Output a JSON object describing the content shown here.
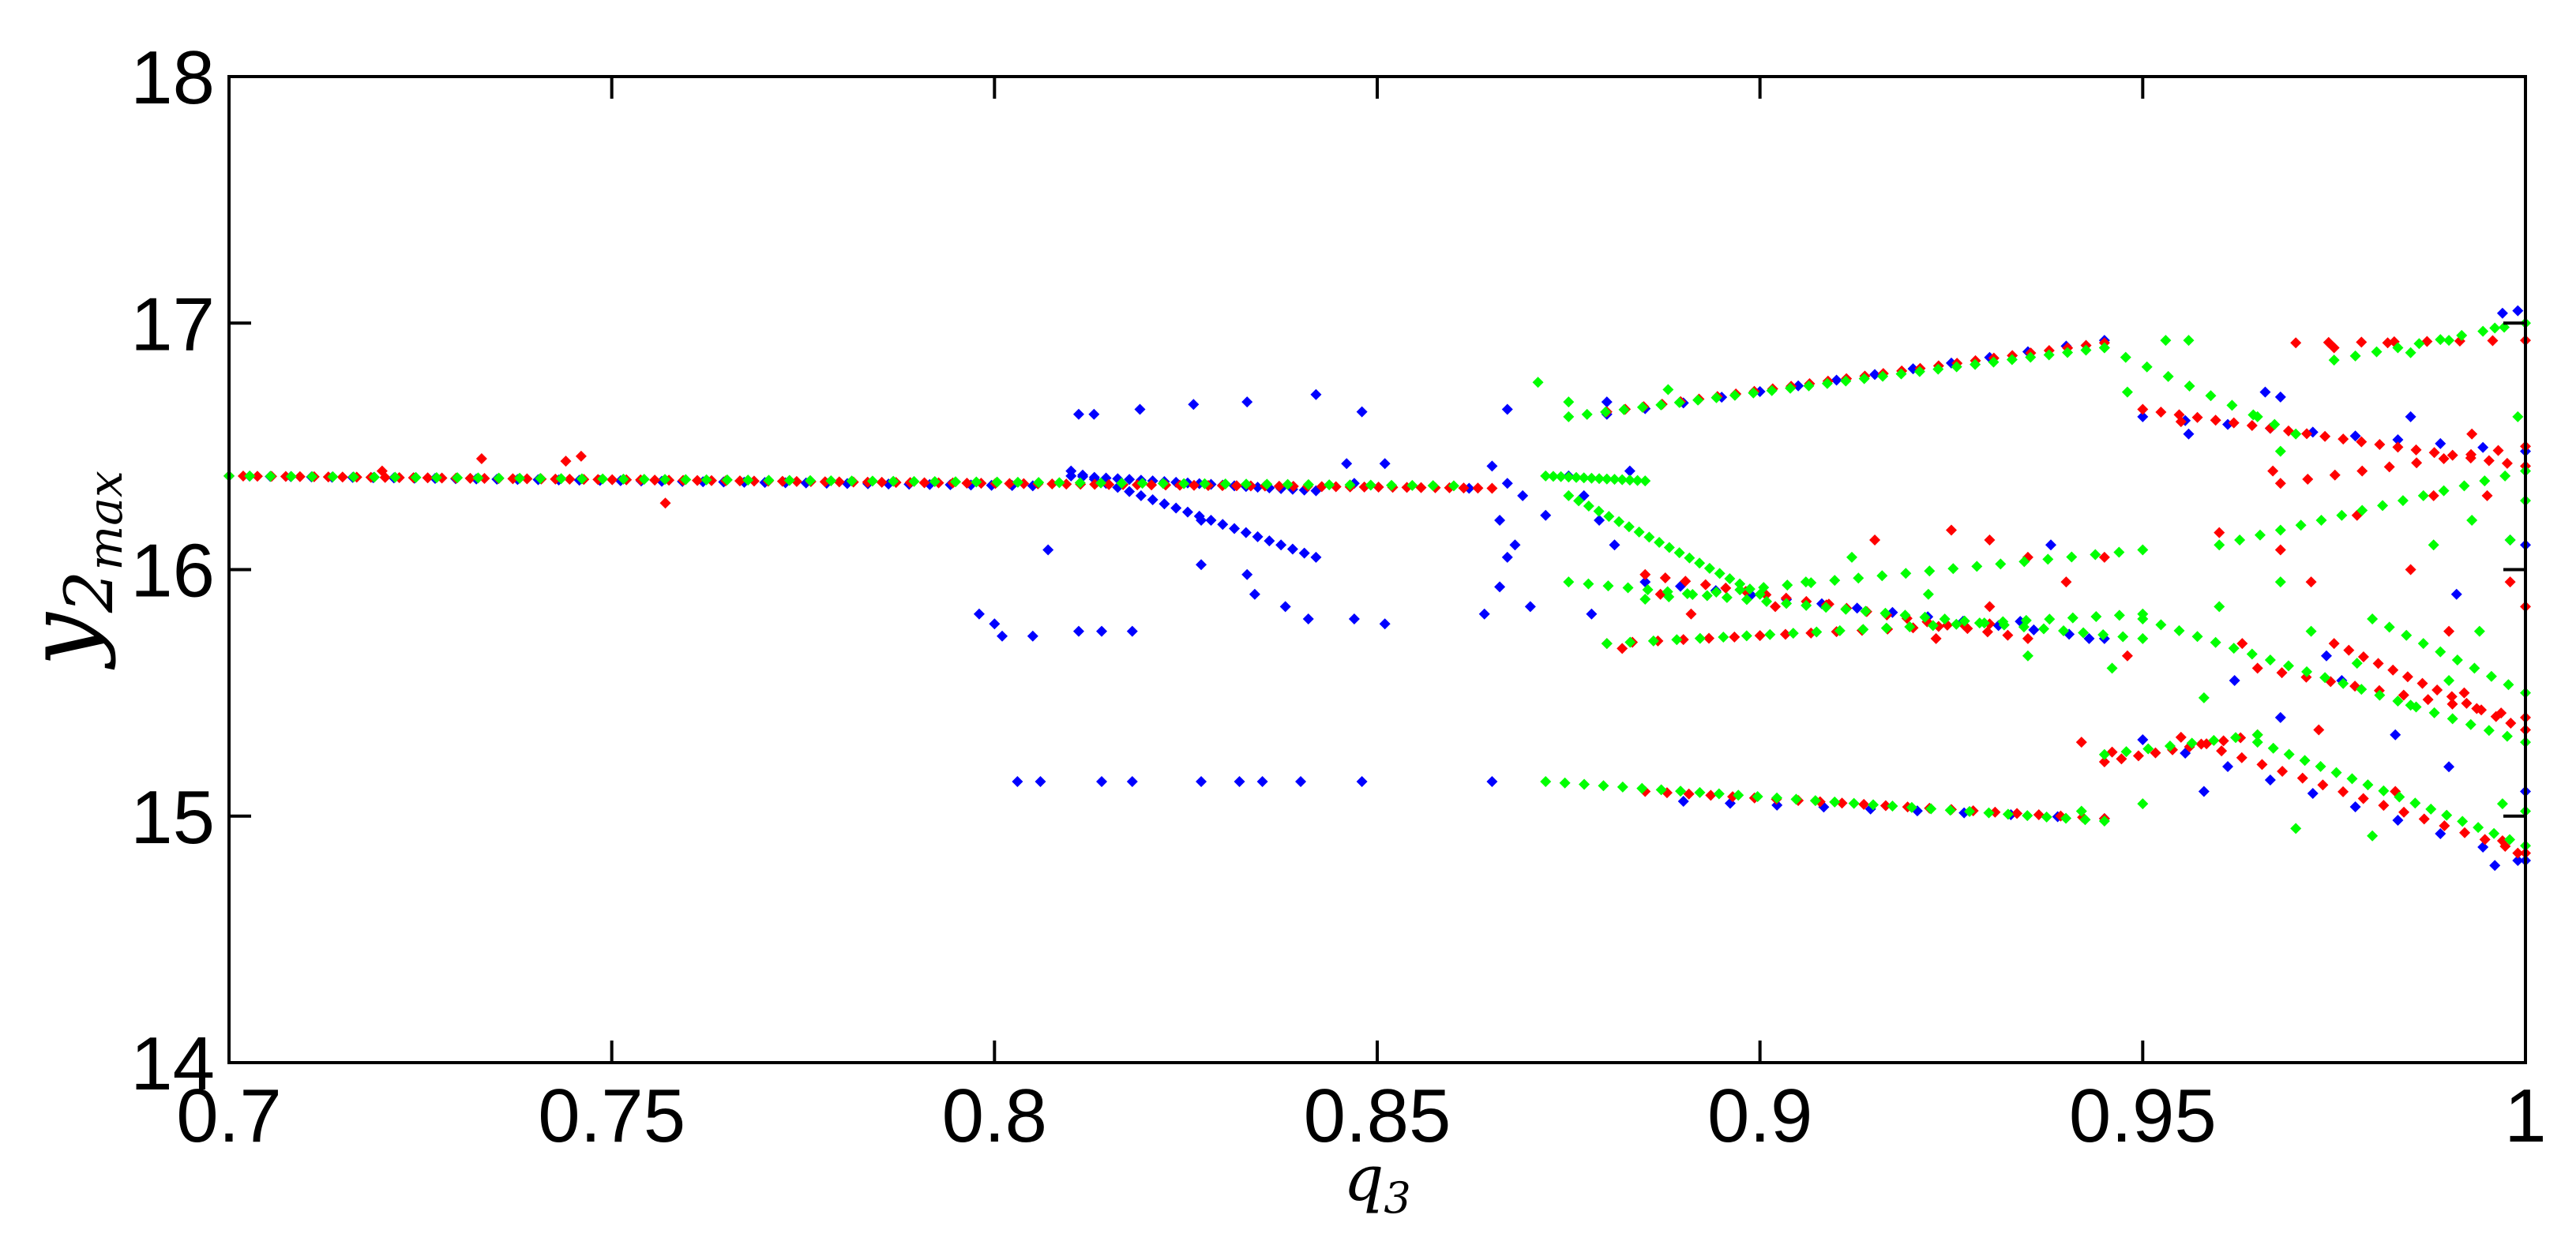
{
  "chart_data": {
    "type": "scatter",
    "title": "",
    "xlabel": "q",
    "xlabel_sub": "3",
    "ylabel": "y",
    "ylabel_sub": "2",
    "ylabel_subsub": "max",
    "xlim": [
      0.7,
      1.0
    ],
    "ylim": [
      14,
      18
    ],
    "x_ticks": [
      0.7,
      0.75,
      0.8,
      0.85,
      0.9,
      0.95,
      1.0
    ],
    "x_tick_labels": [
      "0.7",
      "0.75",
      "0.8",
      "0.85",
      "0.9",
      "0.95",
      "1"
    ],
    "y_ticks": [
      14,
      15,
      16,
      17,
      18
    ],
    "y_tick_labels": [
      "14",
      "15",
      "16",
      "17",
      "18"
    ],
    "grid": false,
    "legend": "none",
    "colors": {
      "blue": "#0000ff",
      "red": "#ff0000",
      "green": "#00ff00",
      "axes": "#000000"
    },
    "series": [
      {
        "color": "blue",
        "segments": [
          {
            "x0": 0.7,
            "x1": 0.805,
            "y0": 16.38,
            "y1": 16.34,
            "n": 40
          },
          {
            "x0": 0.81,
            "x1": 0.842,
            "y0": 16.4,
            "y1": 16.05,
            "n": 22
          },
          {
            "x0": 0.81,
            "x1": 0.842,
            "y0": 16.38,
            "y1": 16.32,
            "n": 22
          },
          {
            "x0": 0.88,
            "x1": 0.945,
            "y0": 16.63,
            "y1": 16.93,
            "n": 14
          },
          {
            "x0": 0.885,
            "x1": 0.945,
            "y0": 15.95,
            "y1": 15.72,
            "n": 14
          },
          {
            "x0": 0.89,
            "x1": 0.945,
            "y0": 15.06,
            "y1": 14.99,
            "n": 10
          },
          {
            "x0": 0.95,
            "x1": 1.0,
            "y0": 16.62,
            "y1": 16.48,
            "n": 10
          },
          {
            "x0": 0.95,
            "x1": 1.0,
            "y0": 15.31,
            "y1": 14.82,
            "n": 10
          }
        ],
        "points": [
          [
            0.811,
            16.63
          ],
          [
            0.813,
            16.63
          ],
          [
            0.819,
            16.65
          ],
          [
            0.826,
            16.67
          ],
          [
            0.833,
            16.68
          ],
          [
            0.842,
            16.71
          ],
          [
            0.848,
            16.64
          ],
          [
            0.798,
            15.82
          ],
          [
            0.8,
            15.78
          ],
          [
            0.801,
            15.73
          ],
          [
            0.805,
            15.73
          ],
          [
            0.811,
            15.75
          ],
          [
            0.814,
            15.75
          ],
          [
            0.818,
            15.75
          ],
          [
            0.827,
            16.02
          ],
          [
            0.833,
            15.98
          ],
          [
            0.834,
            15.9
          ],
          [
            0.838,
            15.85
          ],
          [
            0.841,
            15.8
          ],
          [
            0.847,
            15.8
          ],
          [
            0.851,
            15.78
          ],
          [
            0.803,
            15.14
          ],
          [
            0.806,
            15.14
          ],
          [
            0.814,
            15.14
          ],
          [
            0.818,
            15.14
          ],
          [
            0.827,
            15.14
          ],
          [
            0.832,
            15.14
          ],
          [
            0.835,
            15.14
          ],
          [
            0.84,
            15.14
          ],
          [
            0.848,
            15.14
          ],
          [
            0.865,
            15.14
          ],
          [
            0.807,
            16.08
          ],
          [
            0.827,
            16.2
          ],
          [
            0.846,
            16.43
          ],
          [
            0.847,
            16.35
          ],
          [
            0.851,
            16.43
          ],
          [
            0.862,
            16.33
          ],
          [
            0.865,
            16.42
          ],
          [
            0.867,
            16.35
          ],
          [
            0.869,
            16.3
          ],
          [
            0.866,
            16.2
          ],
          [
            0.868,
            16.1
          ],
          [
            0.867,
            16.05
          ],
          [
            0.866,
            15.93
          ],
          [
            0.87,
            15.85
          ],
          [
            0.872,
            16.22
          ],
          [
            0.875,
            16.38
          ],
          [
            0.877,
            16.3
          ],
          [
            0.879,
            16.2
          ],
          [
            0.881,
            16.1
          ],
          [
            0.883,
            16.4
          ],
          [
            0.878,
            15.82
          ],
          [
            0.864,
            15.82
          ],
          [
            0.867,
            16.65
          ],
          [
            0.88,
            16.68
          ],
          [
            0.934,
            15.79
          ],
          [
            0.938,
            16.1
          ],
          [
            0.943,
            15.72
          ],
          [
            0.956,
            16.55
          ],
          [
            0.966,
            16.72
          ],
          [
            0.968,
            16.7
          ],
          [
            0.985,
            16.62
          ],
          [
            0.99,
            15.2
          ],
          [
            0.997,
            17.04
          ],
          [
            0.999,
            17.05
          ],
          [
            0.998,
            16.12
          ],
          [
            1.0,
            16.1
          ],
          [
            0.996,
            14.8
          ],
          [
            0.999,
            14.82
          ],
          [
            1.0,
            15.1
          ],
          [
            0.983,
            15.33
          ],
          [
            0.974,
            15.65
          ],
          [
            0.976,
            15.55
          ],
          [
            0.991,
            15.9
          ],
          [
            0.962,
            15.55
          ],
          [
            0.958,
            15.1
          ],
          [
            0.968,
            15.4
          ]
        ]
      },
      {
        "color": "red",
        "segments": [
          {
            "x0": 0.7,
            "x1": 0.865,
            "y0": 16.38,
            "y1": 16.33,
            "n": 90
          },
          {
            "x0": 0.88,
            "x1": 0.945,
            "y0": 16.64,
            "y1": 16.92,
            "n": 28
          },
          {
            "x0": 0.885,
            "x1": 0.935,
            "y0": 15.98,
            "y1": 15.72,
            "n": 20
          },
          {
            "x0": 0.88,
            "x1": 0.93,
            "y0": 15.7,
            "y1": 15.78,
            "n": 16
          },
          {
            "x0": 0.885,
            "x1": 0.945,
            "y0": 15.1,
            "y1": 14.99,
            "n": 22
          },
          {
            "x0": 0.945,
            "x1": 0.965,
            "y0": 15.22,
            "y1": 15.33,
            "n": 10
          },
          {
            "x0": 0.95,
            "x1": 1.0,
            "y0": 16.65,
            "y1": 16.42,
            "n": 22
          },
          {
            "x0": 0.955,
            "x1": 1.0,
            "y0": 15.32,
            "y1": 14.85,
            "n": 18
          },
          {
            "x0": 0.975,
            "x1": 1.0,
            "y0": 15.7,
            "y1": 15.35,
            "n": 14
          },
          {
            "x0": 0.965,
            "x1": 1.0,
            "y0": 15.6,
            "y1": 15.4,
            "n": 12
          },
          {
            "x0": 0.968,
            "x1": 1.0,
            "y0": 16.35,
            "y1": 16.5,
            "n": 10
          },
          {
            "x0": 0.97,
            "x1": 1.0,
            "y0": 16.92,
            "y1": 16.93,
            "n": 8
          }
        ],
        "points": [
          [
            0.733,
            16.45
          ],
          [
            0.744,
            16.44
          ],
          [
            0.746,
            16.46
          ],
          [
            0.757,
            16.27
          ],
          [
            0.72,
            16.4
          ],
          [
            0.882,
            15.68
          ],
          [
            0.887,
            15.9
          ],
          [
            0.891,
            15.82
          ],
          [
            0.902,
            15.85
          ],
          [
            0.909,
            15.86
          ],
          [
            0.915,
            16.12
          ],
          [
            0.925,
            16.16
          ],
          [
            0.93,
            16.12
          ],
          [
            0.935,
            16.05
          ],
          [
            0.94,
            15.95
          ],
          [
            0.945,
            16.05
          ],
          [
            0.948,
            15.65
          ],
          [
            0.942,
            15.3
          ],
          [
            0.946,
            15.26
          ],
          [
            0.93,
            15.85
          ],
          [
            0.923,
            15.72
          ],
          [
            0.955,
            16.6
          ],
          [
            0.967,
            16.4
          ],
          [
            0.975,
            16.9
          ],
          [
            0.982,
            16.92
          ],
          [
            0.988,
            16.3
          ],
          [
            0.993,
            16.55
          ],
          [
            0.995,
            16.3
          ],
          [
            0.998,
            15.95
          ],
          [
            1.0,
            15.85
          ],
          [
            0.997,
            14.9
          ],
          [
            0.999,
            14.85
          ],
          [
            0.972,
            15.95
          ],
          [
            0.985,
            16.0
          ],
          [
            0.978,
            16.22
          ],
          [
            0.968,
            16.08
          ],
          [
            0.96,
            16.15
          ],
          [
            0.99,
            15.75
          ],
          [
            0.992,
            15.5
          ],
          [
            0.983,
            15.1
          ],
          [
            0.963,
            15.7
          ],
          [
            0.973,
            15.35
          ]
        ]
      },
      {
        "color": "green",
        "segments": [
          {
            "x0": 0.7,
            "x1": 0.86,
            "y0": 16.38,
            "y1": 16.34,
            "n": 60
          },
          {
            "x0": 0.875,
            "x1": 0.945,
            "y0": 16.62,
            "y1": 16.9,
            "n": 30
          },
          {
            "x0": 0.872,
            "x1": 0.885,
            "y0": 16.38,
            "y1": 16.36,
            "n": 14
          },
          {
            "x0": 0.875,
            "x1": 0.9,
            "y0": 16.3,
            "y1": 15.9,
            "n": 20
          },
          {
            "x0": 0.875,
            "x1": 0.95,
            "y0": 15.95,
            "y1": 15.72,
            "n": 30
          },
          {
            "x0": 0.88,
            "x1": 0.95,
            "y0": 15.7,
            "y1": 15.82,
            "n": 24
          },
          {
            "x0": 0.885,
            "x1": 0.95,
            "y0": 15.88,
            "y1": 16.08,
            "n": 22
          },
          {
            "x0": 0.872,
            "x1": 0.945,
            "y0": 15.14,
            "y1": 14.98,
            "n": 30
          },
          {
            "x0": 0.945,
            "x1": 0.965,
            "y0": 15.25,
            "y1": 15.33,
            "n": 8
          },
          {
            "x0": 0.945,
            "x1": 0.97,
            "y0": 16.9,
            "y1": 16.55,
            "n": 10
          },
          {
            "x0": 0.95,
            "x1": 1.0,
            "y0": 15.8,
            "y1": 15.3,
            "n": 22
          },
          {
            "x0": 0.96,
            "x1": 1.0,
            "y0": 16.1,
            "y1": 16.4,
            "n": 16
          },
          {
            "x0": 0.965,
            "x1": 1.0,
            "y0": 15.3,
            "y1": 14.88,
            "n": 18
          },
          {
            "x0": 0.975,
            "x1": 1.0,
            "y0": 16.85,
            "y1": 17.0,
            "n": 10
          },
          {
            "x0": 0.98,
            "x1": 1.0,
            "y0": 15.8,
            "y1": 15.5,
            "n": 10
          }
        ],
        "points": [
          [
            0.871,
            16.76
          ],
          [
            0.875,
            16.68
          ],
          [
            0.888,
            16.73
          ],
          [
            0.906,
            15.95
          ],
          [
            0.912,
            16.05
          ],
          [
            0.922,
            15.9
          ],
          [
            0.935,
            15.65
          ],
          [
            0.946,
            15.6
          ],
          [
            0.95,
            15.05
          ],
          [
            0.942,
            15.02
          ],
          [
            0.953,
            16.93
          ],
          [
            0.956,
            16.93
          ],
          [
            0.948,
            16.72
          ],
          [
            0.965,
            16.62
          ],
          [
            0.968,
            16.48
          ],
          [
            0.985,
            16.88
          ],
          [
            0.99,
            16.93
          ],
          [
            0.996,
            16.98
          ],
          [
            0.999,
            16.62
          ],
          [
            1.0,
            16.28
          ],
          [
            0.998,
            16.12
          ],
          [
            1.0,
            15.02
          ],
          [
            0.997,
            15.05
          ],
          [
            0.99,
            15.55
          ],
          [
            0.985,
            15.45
          ],
          [
            0.978,
            15.62
          ],
          [
            0.972,
            15.75
          ],
          [
            0.968,
            15.95
          ],
          [
            0.96,
            15.85
          ],
          [
            0.988,
            16.1
          ],
          [
            0.993,
            16.2
          ],
          [
            0.994,
            15.75
          ],
          [
            0.97,
            14.95
          ],
          [
            0.98,
            14.92
          ],
          [
            0.958,
            15.48
          ]
        ]
      }
    ]
  }
}
